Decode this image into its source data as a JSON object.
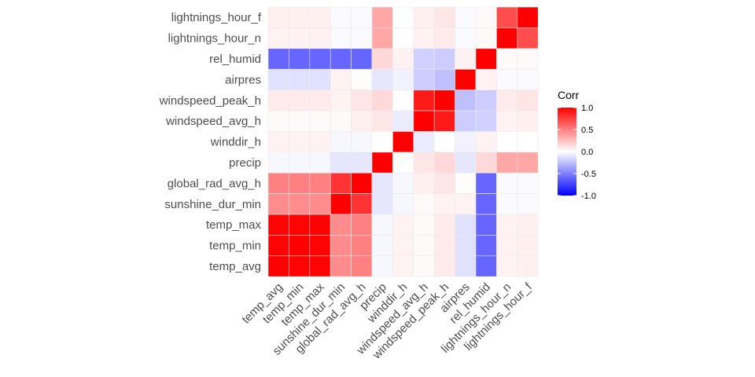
{
  "chart_data": {
    "type": "heatmap",
    "variables": [
      "temp_avg",
      "temp_min",
      "temp_max",
      "sunshine_dur_min",
      "global_rad_avg_h",
      "precip",
      "winddir_h",
      "windspeed_avg_h",
      "windspeed_peak_h",
      "airpres",
      "rel_humid",
      "lightnings_hour_n",
      "lightnings_hour_f"
    ],
    "x_categories": [
      "temp_avg",
      "temp_min",
      "temp_max",
      "sunshine_dur_min",
      "global_rad_avg_h",
      "precip",
      "winddir_h",
      "windspeed_avg_h",
      "windspeed_peak_h",
      "airpres",
      "rel_humid",
      "lightnings_hour_n",
      "lightnings_hour_f"
    ],
    "y_categories_top_to_bottom": [
      "lightnings_hour_f",
      "lightnings_hour_n",
      "rel_humid",
      "airpres",
      "windspeed_peak_h",
      "windspeed_avg_h",
      "winddir_h",
      "precip",
      "global_rad_avg_h",
      "sunshine_dur_min",
      "temp_max",
      "temp_min",
      "temp_avg"
    ],
    "matrix": [
      [
        1.0,
        0.99,
        0.99,
        0.45,
        0.5,
        -0.03,
        0.05,
        0.02,
        0.08,
        -0.12,
        -0.6,
        0.05,
        0.06
      ],
      [
        0.99,
        1.0,
        0.99,
        0.45,
        0.5,
        -0.03,
        0.05,
        0.02,
        0.08,
        -0.12,
        -0.6,
        0.05,
        0.06
      ],
      [
        0.99,
        0.99,
        1.0,
        0.45,
        0.5,
        -0.03,
        0.05,
        0.02,
        0.08,
        -0.12,
        -0.6,
        0.05,
        0.06
      ],
      [
        0.45,
        0.45,
        0.45,
        1.0,
        0.8,
        -0.1,
        -0.03,
        0.02,
        0.05,
        0.05,
        -0.6,
        -0.02,
        -0.02
      ],
      [
        0.5,
        0.5,
        0.5,
        0.8,
        1.0,
        -0.1,
        -0.03,
        0.06,
        0.1,
        0.01,
        -0.6,
        -0.02,
        -0.02
      ],
      [
        -0.03,
        -0.03,
        -0.03,
        -0.1,
        -0.1,
        1.0,
        0.0,
        0.1,
        0.15,
        -0.1,
        0.15,
        0.35,
        0.35
      ],
      [
        0.05,
        0.05,
        0.05,
        -0.03,
        -0.03,
        0.0,
        1.0,
        -0.08,
        0.0,
        -0.05,
        0.05,
        0.0,
        0.0
      ],
      [
        0.02,
        0.02,
        0.02,
        0.02,
        0.06,
        0.1,
        -0.08,
        1.0,
        0.9,
        -0.2,
        -0.18,
        0.05,
        0.06
      ],
      [
        0.08,
        0.08,
        0.08,
        0.05,
        0.1,
        0.15,
        0.0,
        0.9,
        1.0,
        -0.25,
        -0.2,
        0.08,
        0.1
      ],
      [
        -0.12,
        -0.12,
        -0.12,
        0.05,
        0.01,
        -0.1,
        -0.05,
        -0.2,
        -0.25,
        1.0,
        0.05,
        -0.02,
        -0.02
      ],
      [
        -0.6,
        -0.6,
        -0.6,
        -0.6,
        -0.6,
        0.15,
        0.05,
        -0.18,
        -0.2,
        0.05,
        1.0,
        0.02,
        0.02
      ],
      [
        0.05,
        0.05,
        0.05,
        -0.02,
        -0.02,
        0.35,
        0.0,
        0.05,
        0.08,
        -0.02,
        0.02,
        1.0,
        0.7
      ],
      [
        0.06,
        0.06,
        0.06,
        -0.02,
        -0.02,
        0.35,
        0.0,
        0.06,
        0.1,
        -0.02,
        0.02,
        0.7,
        1.0
      ]
    ],
    "legend": {
      "title": "Corr",
      "ticks": [
        "1.0",
        "0.5",
        "0.0",
        "-0.5",
        "-1.0"
      ],
      "range": [
        -1,
        1
      ],
      "placement": "right"
    },
    "colors": {
      "low": "#0000ff",
      "mid": "#ffffff",
      "high": "#ff0000",
      "grid": "#ebebeb"
    },
    "grid": true
  }
}
